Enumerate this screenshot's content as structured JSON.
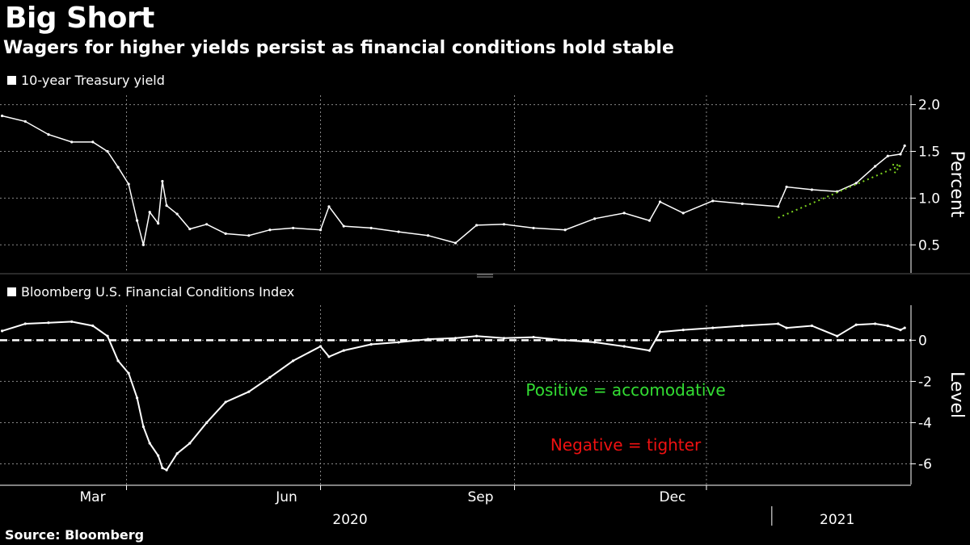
{
  "title": "Big Short",
  "subtitle": "Wagers for higher yields persist as financial conditions hold stable",
  "source": "Source: Bloomberg",
  "chart_data": [
    {
      "type": "line",
      "series": [
        {
          "name": "10-year Treasury yield",
          "color": "#ffffff"
        }
      ],
      "ylabel": "Percent",
      "ylim": [
        0.2,
        2.1
      ],
      "yticks": [
        0.5,
        1.0,
        1.5,
        2.0
      ],
      "ytick_labels": [
        "0.5",
        "1.0",
        "1.5",
        "2.0"
      ],
      "grid": true,
      "x": [
        "2020-01-02",
        "2020-01-13",
        "2020-01-24",
        "2020-02-04",
        "2020-02-14",
        "2020-02-21",
        "2020-02-26",
        "2020-03-02",
        "2020-03-06",
        "2020-03-09",
        "2020-03-12",
        "2020-03-16",
        "2020-03-18",
        "2020-03-20",
        "2020-03-25",
        "2020-03-31",
        "2020-04-08",
        "2020-04-17",
        "2020-04-28",
        "2020-05-08",
        "2020-05-19",
        "2020-06-01",
        "2020-06-05",
        "2020-06-12",
        "2020-06-25",
        "2020-07-08",
        "2020-07-22",
        "2020-08-04",
        "2020-08-14",
        "2020-08-27",
        "2020-09-10",
        "2020-09-25",
        "2020-10-09",
        "2020-10-23",
        "2020-11-04",
        "2020-11-09",
        "2020-11-20",
        "2020-12-04",
        "2020-12-18",
        "2021-01-04",
        "2021-01-08",
        "2021-01-20",
        "2021-02-01",
        "2021-02-10",
        "2021-02-19",
        "2021-02-25",
        "2021-03-03",
        "2021-03-05"
      ],
      "values": [
        1.88,
        1.82,
        1.68,
        1.6,
        1.6,
        1.5,
        1.33,
        1.15,
        0.76,
        0.5,
        0.85,
        0.73,
        1.18,
        0.92,
        0.83,
        0.67,
        0.72,
        0.62,
        0.6,
        0.66,
        0.68,
        0.66,
        0.91,
        0.7,
        0.68,
        0.64,
        0.6,
        0.52,
        0.71,
        0.72,
        0.68,
        0.66,
        0.78,
        0.84,
        0.76,
        0.96,
        0.84,
        0.97,
        0.94,
        0.91,
        1.12,
        1.09,
        1.07,
        1.16,
        1.34,
        1.45,
        1.47,
        1.56
      ],
      "annotations": [
        {
          "type": "arrow",
          "color": "#7cd11e",
          "style": "dotted",
          "from": [
            "2021-01-04",
            0.79
          ],
          "to": [
            "2021-03-03",
            1.35
          ]
        }
      ]
    },
    {
      "type": "line",
      "series": [
        {
          "name": "Bloomberg U.S. Financial Conditions Index",
          "color": "#ffffff"
        }
      ],
      "ylabel": "Level",
      "ylim": [
        -7,
        1.7
      ],
      "yticks": [
        -6,
        -4,
        -2,
        0
      ],
      "ytick_labels": [
        "-6",
        "-4",
        "-2",
        "0"
      ],
      "zero_line": {
        "value": 0,
        "style": "dashed"
      },
      "grid": true,
      "x": [
        "2020-01-02",
        "2020-01-13",
        "2020-01-24",
        "2020-02-04",
        "2020-02-14",
        "2020-02-21",
        "2020-02-26",
        "2020-03-02",
        "2020-03-06",
        "2020-03-09",
        "2020-03-12",
        "2020-03-16",
        "2020-03-18",
        "2020-03-20",
        "2020-03-25",
        "2020-03-31",
        "2020-04-08",
        "2020-04-17",
        "2020-04-28",
        "2020-05-08",
        "2020-05-19",
        "2020-06-01",
        "2020-06-05",
        "2020-06-12",
        "2020-06-25",
        "2020-07-08",
        "2020-07-22",
        "2020-08-04",
        "2020-08-14",
        "2020-08-27",
        "2020-09-10",
        "2020-09-25",
        "2020-10-09",
        "2020-10-23",
        "2020-11-04",
        "2020-11-09",
        "2020-11-20",
        "2020-12-04",
        "2020-12-18",
        "2021-01-04",
        "2021-01-08",
        "2021-01-20",
        "2021-02-01",
        "2021-02-10",
        "2021-02-19",
        "2021-02-25",
        "2021-03-03",
        "2021-03-05"
      ],
      "values": [
        0.45,
        0.8,
        0.85,
        0.9,
        0.7,
        0.2,
        -1.0,
        -1.6,
        -2.8,
        -4.2,
        -5.0,
        -5.6,
        -6.2,
        -6.3,
        -5.5,
        -5.0,
        -4.0,
        -3.0,
        -2.5,
        -1.8,
        -1.0,
        -0.3,
        -0.8,
        -0.5,
        -0.2,
        -0.1,
        0.05,
        0.1,
        0.2,
        0.1,
        0.15,
        0.0,
        -0.1,
        -0.3,
        -0.5,
        0.4,
        0.5,
        0.6,
        0.7,
        0.8,
        0.6,
        0.7,
        0.2,
        0.75,
        0.8,
        0.7,
        0.5,
        0.6
      ],
      "annotations": [
        {
          "text": "Positive = accomodative",
          "color": "#33dd33"
        },
        {
          "text": "Negative = tighter",
          "color": "#ee1111"
        }
      ]
    }
  ],
  "x_axis": {
    "month_labels": [
      "Mar",
      "Jun",
      "Sep",
      "Dec"
    ],
    "month_ticks": [
      "2020-03-01",
      "2020-06-01",
      "2020-09-01",
      "2020-12-01"
    ],
    "year_labels": [
      "2020",
      "2021"
    ],
    "year_label_dates": [
      "2020-06-15",
      "2021-02-01"
    ],
    "year_divider": "2021-01-01"
  }
}
